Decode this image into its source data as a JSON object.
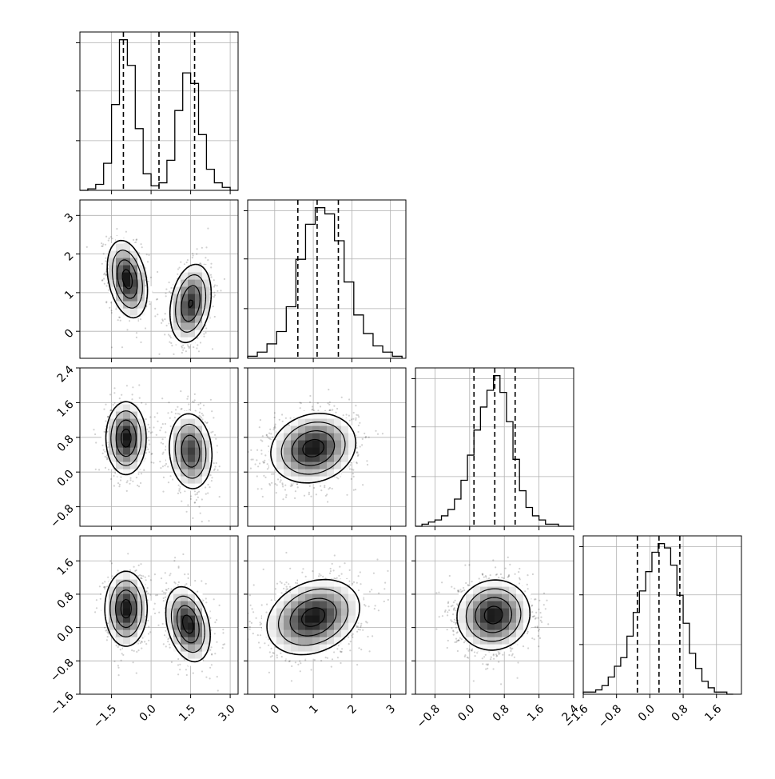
{
  "chart_data": {
    "type": "corner",
    "parameters": [
      {
        "range": [
          -2.7,
          3.3
        ],
        "ticks": [
          "−1.5",
          "0.0",
          "1.5",
          "3.0"
        ],
        "tick_values": [
          -1.5,
          0.0,
          1.5,
          3.0
        ],
        "quantiles": [
          -1.05,
          0.3,
          1.65
        ]
      },
      {
        "range": [
          -0.7,
          3.4
        ],
        "ticks": [
          "0",
          "1",
          "2",
          "3"
        ],
        "tick_values": [
          0,
          1,
          2,
          3
        ],
        "quantiles": [
          0.6,
          1.1,
          1.65
        ]
      },
      {
        "range": [
          -1.25,
          2.4
        ],
        "ticks": [
          "−0.8",
          "0.0",
          "0.8",
          "1.6",
          "2.4"
        ],
        "tick_values": [
          -0.8,
          0.0,
          0.8,
          1.6,
          2.4
        ],
        "quantiles": [
          0.1,
          0.58,
          1.05
        ]
      },
      {
        "range": [
          -1.6,
          2.2
        ],
        "ticks": [
          "−1.6",
          "−0.8",
          "0.0",
          "0.8",
          "1.6"
        ],
        "tick_values": [
          -1.6,
          -0.8,
          0.0,
          0.8,
          1.6
        ],
        "quantiles": [
          -0.3,
          0.22,
          0.72
        ]
      }
    ],
    "marginal_histograms": [
      {
        "parameter": 0,
        "bins": [
          -2.7,
          -2.4,
          -2.1,
          -1.8,
          -1.5,
          -1.2,
          -0.9,
          -0.6,
          -0.3,
          0.0,
          0.3,
          0.6,
          0.9,
          1.2,
          1.5,
          1.8,
          2.1,
          2.4,
          2.7,
          3.0,
          3.3
        ],
        "values": [
          0,
          1,
          4,
          18,
          57,
          100,
          83,
          41,
          11,
          3,
          5,
          20,
          53,
          78,
          71,
          37,
          14,
          5,
          2,
          0
        ]
      },
      {
        "parameter": 1,
        "bins": [
          -0.7,
          -0.45,
          -0.2,
          0.05,
          0.3,
          0.55,
          0.8,
          1.05,
          1.3,
          1.55,
          1.8,
          2.05,
          2.3,
          2.55,
          2.8,
          3.05,
          3.3
        ],
        "values": [
          1,
          3,
          7,
          13,
          25,
          48,
          65,
          73,
          70,
          57,
          37,
          21,
          12,
          6,
          3,
          1
        ]
      },
      {
        "parameter": 2,
        "bins": [
          -1.25,
          -1.1,
          -0.95,
          -0.8,
          -0.65,
          -0.5,
          -0.35,
          -0.2,
          -0.05,
          0.1,
          0.25,
          0.4,
          0.55,
          0.7,
          0.85,
          1.0,
          1.15,
          1.3,
          1.45,
          1.6,
          1.75,
          1.9,
          2.05,
          2.2,
          2.35
        ],
        "values": [
          0,
          1,
          2,
          3,
          5,
          8,
          13,
          22,
          34,
          46,
          57,
          65,
          72,
          64,
          50,
          32,
          17,
          9,
          5,
          3,
          1,
          1,
          0,
          0
        ]
      },
      {
        "parameter": 3,
        "bins": [
          -1.6,
          -1.45,
          -1.3,
          -1.15,
          -1.0,
          -0.85,
          -0.7,
          -0.55,
          -0.4,
          -0.25,
          -0.1,
          0.05,
          0.2,
          0.35,
          0.5,
          0.65,
          0.8,
          0.95,
          1.1,
          1.25,
          1.4,
          1.55,
          1.7,
          1.85,
          2.0
        ],
        "values": [
          1,
          1,
          2,
          4,
          8,
          13,
          17,
          27,
          38,
          48,
          57,
          66,
          70,
          68,
          60,
          46,
          33,
          19,
          12,
          6,
          3,
          1,
          1,
          0
        ]
      }
    ],
    "joint_distributions": [
      {
        "x_param": 0,
        "y_param": 1,
        "modes": [
          {
            "center": [
              -0.9,
              1.35
            ],
            "spread": [
              0.38,
              0.5
            ],
            "rho": -0.3,
            "weight": 0.5
          },
          {
            "center": [
              1.5,
              0.72
            ],
            "spread": [
              0.4,
              0.52
            ],
            "rho": 0.25,
            "weight": 0.5
          }
        ]
      },
      {
        "x_param": 0,
        "y_param": 2,
        "modes": [
          {
            "center": [
              -0.95,
              0.78
            ],
            "spread": [
              0.38,
              0.42
            ],
            "rho": 0.0,
            "weight": 0.5
          },
          {
            "center": [
              1.5,
              0.48
            ],
            "spread": [
              0.42,
              0.45
            ],
            "rho": -0.1,
            "weight": 0.5
          }
        ]
      },
      {
        "x_param": 1,
        "y_param": 2,
        "modes": [
          {
            "center": [
              1.0,
              0.55
            ],
            "spread": [
              0.55,
              0.4
            ],
            "rho": 0.15,
            "weight": 1.0
          }
        ]
      },
      {
        "x_param": 0,
        "y_param": 3,
        "modes": [
          {
            "center": [
              -0.95,
              0.45
            ],
            "spread": [
              0.4,
              0.45
            ],
            "rho": 0.0,
            "weight": 0.5
          },
          {
            "center": [
              1.4,
              0.08
            ],
            "spread": [
              0.42,
              0.45
            ],
            "rho": -0.3,
            "weight": 0.5
          }
        ]
      },
      {
        "x_param": 1,
        "y_param": 3,
        "modes": [
          {
            "center": [
              1.0,
              0.25
            ],
            "spread": [
              0.6,
              0.45
            ],
            "rho": 0.25,
            "weight": 1.0
          }
        ]
      },
      {
        "x_param": 2,
        "y_param": 3,
        "modes": [
          {
            "center": [
              0.55,
              0.3
            ],
            "spread": [
              0.42,
              0.42
            ],
            "rho": 0.05,
            "weight": 1.0
          }
        ]
      }
    ],
    "contour_levels": [
      "0.5σ",
      "1σ",
      "1.5σ",
      "2σ"
    ],
    "grid": true
  }
}
